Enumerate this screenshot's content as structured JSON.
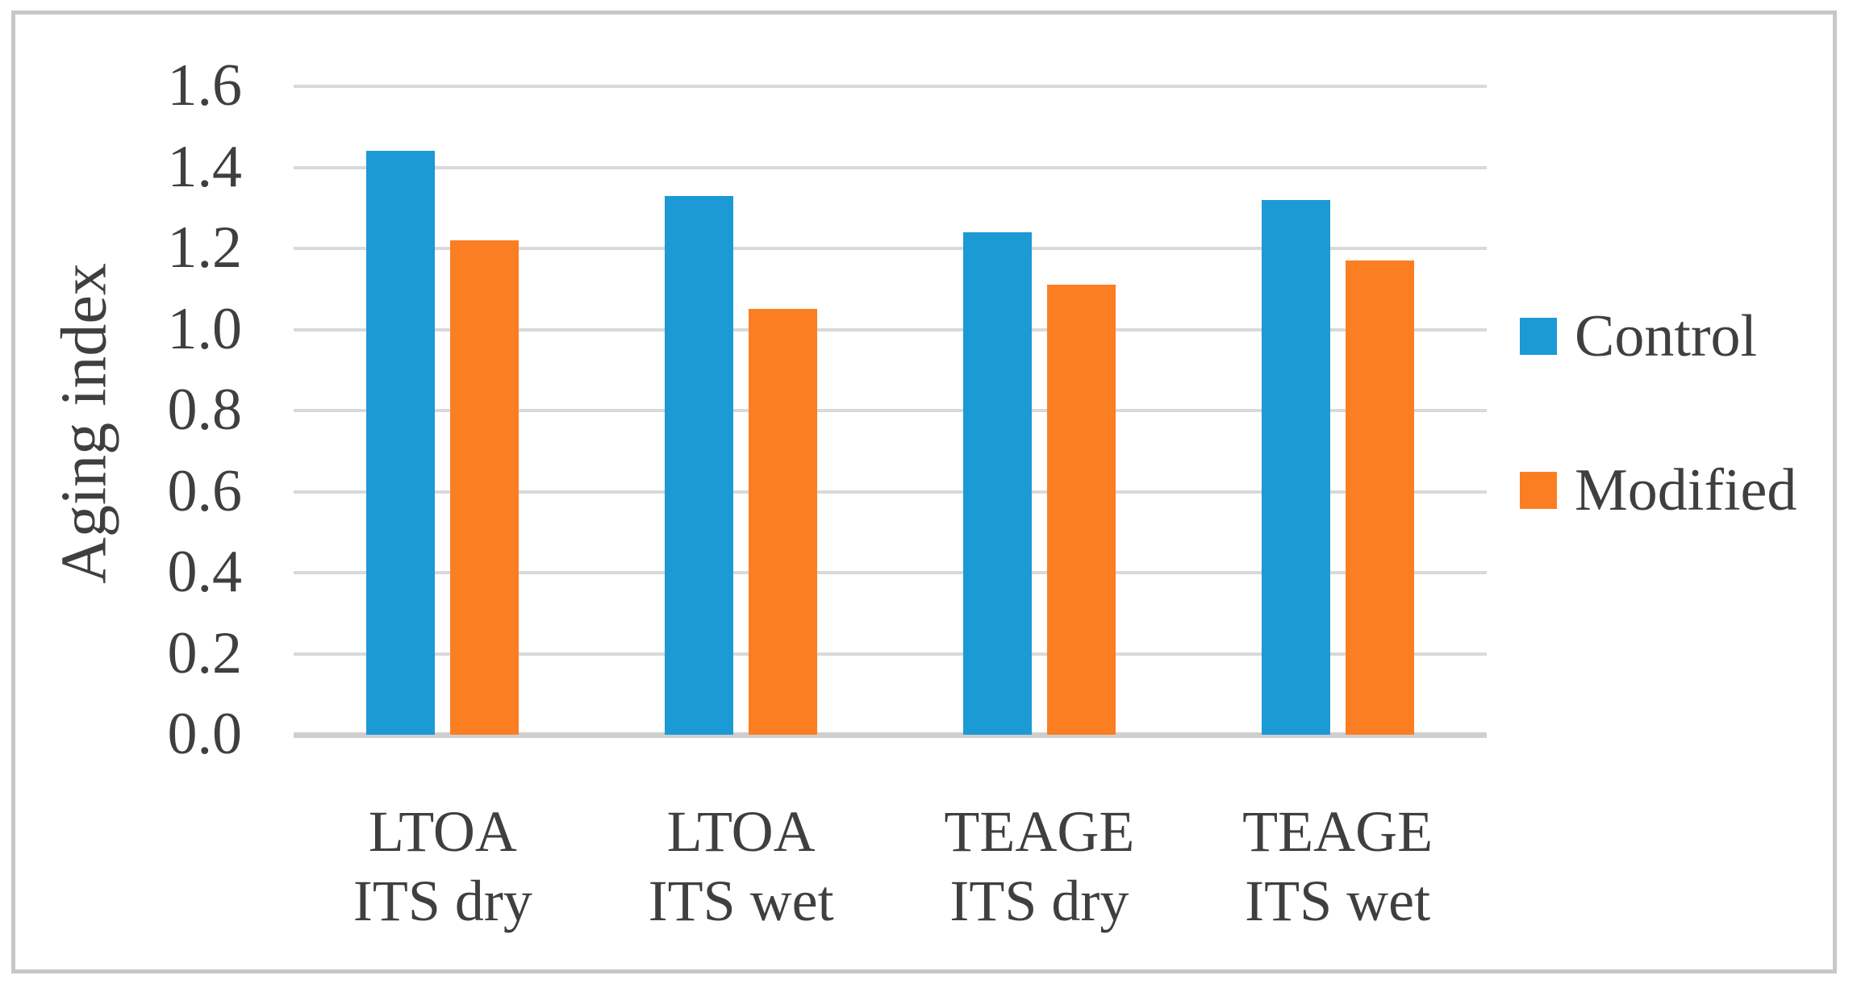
{
  "figure": {
    "background": "#ffffff",
    "frame_color": "#c7c7c7"
  },
  "chart_data": {
    "type": "bar",
    "title": "",
    "xlabel": "",
    "ylabel": "Aging index",
    "ylim": [
      0,
      1.6
    ],
    "ytick_step": 0.2,
    "ytick_labels": [
      "1.6",
      "1.4",
      "1.2",
      "1.0",
      "0.8",
      "0.6",
      "0.4",
      "0.2",
      "0.0"
    ],
    "grid": true,
    "legend_position": "right",
    "categories": [
      "LTOA ITS dry",
      "LTOA ITS wet",
      "TEAGE ITS dry",
      "TEAGE ITS wet"
    ],
    "category_lines": [
      [
        "LTOA",
        "ITS dry"
      ],
      [
        "LTOA",
        "ITS wet"
      ],
      [
        "TEAGE",
        "ITS dry"
      ],
      [
        "TEAGE",
        "ITS wet"
      ]
    ],
    "series": [
      {
        "name": "Control",
        "color": "#1c9ad6",
        "values": [
          1.44,
          1.33,
          1.24,
          1.32
        ]
      },
      {
        "name": "Modified",
        "color": "#fb7e23",
        "values": [
          1.22,
          1.05,
          1.11,
          1.17
        ]
      }
    ],
    "colors": {
      "gridline": "#d9d9d9",
      "axis_line": "#cfcfcf",
      "text": "#3f3f3f"
    }
  }
}
